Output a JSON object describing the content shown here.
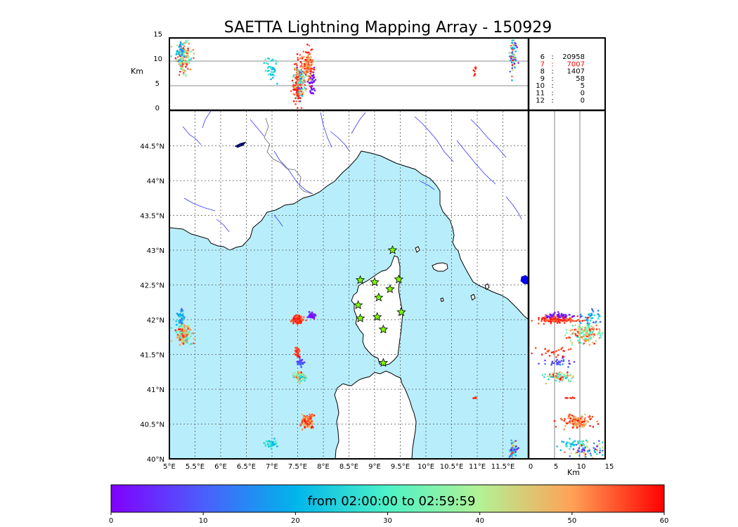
{
  "chart_data": {
    "type": "scatter",
    "title": "SAETTA Lightning Mapping Array - 150929",
    "top_panel": {
      "ylabel": "Km",
      "ylim": [
        0,
        15
      ],
      "yticks": [
        "0",
        "5",
        "10",
        "15"
      ]
    },
    "side_panel": {
      "xlabel": "Km",
      "xlim": [
        0,
        15
      ],
      "xticks": [
        "0",
        "5",
        "10",
        "15"
      ]
    },
    "map": {
      "lon_range": [
        5.0,
        12.0
      ],
      "lat_range": [
        40.0,
        45.0
      ],
      "lon_ticks": [
        "5°E",
        "5.5°E",
        "6°E",
        "6.5°E",
        "7°E",
        "7.5°E",
        "8°E",
        "8.5°E",
        "9°E",
        "9.5°E",
        "10°E",
        "10.5°E",
        "11°E",
        "11.5°E"
      ],
      "lat_ticks": [
        "40°N",
        "40.5°N",
        "41°N",
        "41.5°N",
        "42°N",
        "42.5°N",
        "43°N",
        "43.5°N",
        "44°N",
        "44.5°N"
      ],
      "grid": true,
      "stations": [
        [
          8.72,
          42.57
        ],
        [
          9.0,
          42.54
        ],
        [
          9.35,
          43.0
        ],
        [
          9.47,
          42.58
        ],
        [
          9.3,
          42.44
        ],
        [
          9.08,
          42.32
        ],
        [
          8.68,
          42.21
        ],
        [
          9.52,
          42.11
        ],
        [
          8.72,
          42.02
        ],
        [
          9.05,
          42.04
        ],
        [
          9.17,
          41.86
        ],
        [
          9.17,
          41.38
        ]
      ]
    },
    "stats": [
      {
        "label": "6",
        "sep": ":",
        "value": "20958",
        "highlight": false
      },
      {
        "label": "7",
        "sep": ":",
        "value": "7007",
        "highlight": true
      },
      {
        "label": "8",
        "sep": ":",
        "value": "1407",
        "highlight": false
      },
      {
        "label": "9",
        "sep": ":",
        "value": "58",
        "highlight": false
      },
      {
        "label": "10",
        "sep": ":",
        "value": "5",
        "highlight": false
      },
      {
        "label": "11",
        "sep": ":",
        "value": "0",
        "highlight": false
      },
      {
        "label": "12",
        "sep": ":",
        "value": "0",
        "highlight": false
      }
    ],
    "colorbar": {
      "label": "from 02:00:00 to 02:59:59",
      "range": [
        0,
        60
      ],
      "ticks": [
        "0",
        "10",
        "20",
        "30",
        "40",
        "50",
        "60"
      ],
      "colormap": "rainbow"
    },
    "clusters": [
      {
        "lon": 5.28,
        "lat": 41.8,
        "lon_sd": 0.07,
        "lat_sd": 0.07,
        "alt": 11.0,
        "alt_sd": 1.5,
        "t_min": 25,
        "t_max": 60,
        "n": 160
      },
      {
        "lon": 5.22,
        "lat": 42.02,
        "lon_sd": 0.04,
        "lat_sd": 0.05,
        "alt": 12.0,
        "alt_sd": 1.0,
        "t_min": 5,
        "t_max": 30,
        "n": 40
      },
      {
        "lon": 7.5,
        "lat": 42.0,
        "lon_sd": 0.05,
        "lat_sd": 0.025,
        "alt": 5.5,
        "alt_sd": 2.0,
        "t_min": 52,
        "t_max": 60,
        "n": 140
      },
      {
        "lon": 7.78,
        "lat": 42.06,
        "lon_sd": 0.04,
        "lat_sd": 0.02,
        "alt": 6.0,
        "alt_sd": 1.5,
        "t_min": 0,
        "t_max": 6,
        "n": 50
      },
      {
        "lon": 7.5,
        "lat": 41.55,
        "lon_sd": 0.03,
        "lat_sd": 0.03,
        "alt": 5.0,
        "alt_sd": 1.5,
        "t_min": 54,
        "t_max": 60,
        "n": 25
      },
      {
        "lon": 7.55,
        "lat": 41.38,
        "lon_sd": 0.04,
        "lat_sd": 0.03,
        "alt": 6.0,
        "alt_sd": 1.5,
        "t_min": 5,
        "t_max": 14,
        "n": 30
      },
      {
        "lon": 7.55,
        "lat": 41.18,
        "lon_sd": 0.06,
        "lat_sd": 0.03,
        "alt": 6.0,
        "alt_sd": 1.5,
        "t_min": 20,
        "t_max": 60,
        "n": 80
      },
      {
        "lon": 7.7,
        "lat": 40.53,
        "lon_sd": 0.05,
        "lat_sd": 0.05,
        "alt": 9.5,
        "alt_sd": 1.5,
        "t_min": 45,
        "t_max": 60,
        "n": 140
      },
      {
        "lon": 6.98,
        "lat": 40.22,
        "lon_sd": 0.06,
        "lat_sd": 0.03,
        "alt": 8.5,
        "alt_sd": 1.5,
        "t_min": 18,
        "t_max": 32,
        "n": 40
      },
      {
        "lon": 10.95,
        "lat": 40.88,
        "lon_sd": 0.015,
        "lat_sd": 0.01,
        "alt": 8.0,
        "alt_sd": 0.8,
        "t_min": 56,
        "t_max": 60,
        "n": 8
      },
      {
        "lon": 11.7,
        "lat": 40.12,
        "lon_sd": 0.03,
        "lat_sd": 0.06,
        "alt": 11.5,
        "alt_sd": 2.0,
        "t_min": 0,
        "t_max": 60,
        "n": 70
      }
    ]
  }
}
